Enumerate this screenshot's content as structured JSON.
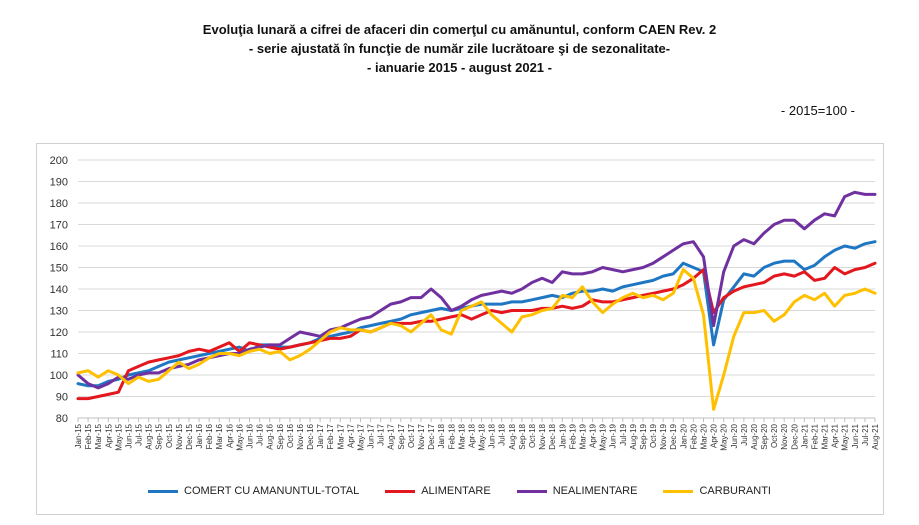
{
  "chart_data": {
    "type": "line",
    "title": "Evoluţia lunară a cifrei de afaceri din comerţul cu amănuntul,  conform CAEN Rev. 2",
    "subtitle": "- serie ajustată în funcţie de număr zile lucrătoare şi de sezonalitate-",
    "subtitle2": "- ianuarie 2015 -  august 2021  -",
    "unit_note": "- 2015=100 -",
    "ylim": [
      80,
      200
    ],
    "yticks": [
      "80",
      "90",
      "100",
      "110",
      "120",
      "130",
      "140",
      "150",
      "160",
      "170",
      "180",
      "190",
      "200"
    ],
    "grid": true,
    "legend_position": "bottom",
    "x": [
      "Jan-15",
      "Feb-15",
      "Mar-15",
      "Apr-15",
      "May-15",
      "Jun-15",
      "Jul-15",
      "Aug-15",
      "Sep-15",
      "Oct-15",
      "Nov-15",
      "Dec-15",
      "Jan-16",
      "Feb-16",
      "Mar-16",
      "Apr-16",
      "May-16",
      "Jun-16",
      "Jul-16",
      "Aug-16",
      "Sep-16",
      "Oct-16",
      "Nov-16",
      "Dec-16",
      "Jan-17",
      "Feb-17",
      "Mar-17",
      "Apr-17",
      "May-17",
      "Jun-17",
      "Jul-17",
      "Aug-17",
      "Sep-17",
      "Oct-17",
      "Nov-17",
      "Dec-17",
      "Jan-18",
      "Feb-18",
      "Mar-18",
      "Apr-18",
      "May-18",
      "Jun-18",
      "Jul-18",
      "Aug-18",
      "Sep-18",
      "Oct-18",
      "Nov-18",
      "Dec-18",
      "Jan-19",
      "Feb-19",
      "Mar-19",
      "Apr-19",
      "May-19",
      "Jun-19",
      "Jul-19",
      "Aug-19",
      "Sep-19",
      "Oct-19",
      "Nov-19",
      "Dec-19",
      "Jan-20",
      "Feb-20",
      "Mar-20",
      "Apr-20",
      "May-20",
      "Jun-20",
      "Jul-20",
      "Aug-20",
      "Sep-20",
      "Oct-20",
      "Nov-20",
      "Dec-20",
      "Jan-21",
      "Feb-21",
      "Mar-21",
      "Apr-21",
      "May-21",
      "Jun-21",
      "Jul-21",
      "Aug-21"
    ],
    "series": [
      {
        "name": "COMERT CU AMANUNTUL-TOTAL",
        "color": "#1f77c4",
        "values": [
          96,
          95,
          95,
          97,
          98,
          100,
          101,
          102,
          104,
          106,
          107,
          108,
          109,
          110,
          111,
          112,
          113,
          111,
          114,
          114,
          113,
          113,
          114,
          115,
          117,
          118,
          119,
          120,
          122,
          123,
          124,
          125,
          126,
          128,
          129,
          130,
          131,
          130,
          131,
          132,
          133,
          133,
          133,
          134,
          134,
          135,
          136,
          137,
          136,
          138,
          139,
          139,
          140,
          139,
          141,
          142,
          143,
          144,
          146,
          147,
          152,
          150,
          148,
          114,
          135,
          141,
          147,
          146,
          150,
          152,
          153,
          153,
          149,
          151,
          155,
          158,
          160,
          159,
          161,
          162
        ]
      },
      {
        "name": "ALIMENTARE",
        "color": "#e3171d",
        "values": [
          89,
          89,
          90,
          91,
          92,
          102,
          104,
          106,
          107,
          108,
          109,
          111,
          112,
          111,
          113,
          115,
          111,
          115,
          114,
          113,
          112,
          113,
          114,
          115,
          116,
          117,
          117,
          118,
          121,
          120,
          122,
          124,
          124,
          124,
          125,
          125,
          126,
          127,
          128,
          126,
          128,
          130,
          129,
          130,
          130,
          130,
          131,
          131,
          132,
          131,
          132,
          135,
          134,
          134,
          135,
          136,
          137,
          138,
          139,
          140,
          142,
          145,
          149,
          129,
          136,
          139,
          141,
          142,
          143,
          146,
          147,
          146,
          148,
          144,
          145,
          150,
          147,
          149,
          150,
          152
        ]
      },
      {
        "name": "NEALIMENTARE",
        "color": "#7030a0",
        "values": [
          100,
          96,
          94,
          96,
          99,
          98,
          100,
          101,
          101,
          103,
          104,
          105,
          107,
          108,
          109,
          110,
          110,
          112,
          113,
          114,
          114,
          117,
          120,
          119,
          118,
          121,
          122,
          124,
          126,
          127,
          130,
          133,
          134,
          136,
          136,
          140,
          136,
          130,
          132,
          135,
          137,
          138,
          139,
          138,
          140,
          143,
          145,
          143,
          148,
          147,
          147,
          148,
          150,
          149,
          148,
          149,
          150,
          152,
          155,
          158,
          161,
          162,
          155,
          123,
          148,
          160,
          163,
          161,
          166,
          170,
          172,
          172,
          168,
          172,
          175,
          174,
          183,
          185,
          184,
          184
        ]
      },
      {
        "name": "CARBURANTI",
        "color": "#ffc000",
        "values": [
          101,
          102,
          99,
          102,
          100,
          96,
          99,
          97,
          98,
          102,
          106,
          103,
          105,
          108,
          110,
          110,
          109,
          111,
          112,
          110,
          111,
          107,
          109,
          112,
          116,
          120,
          122,
          121,
          121,
          120,
          122,
          124,
          123,
          120,
          124,
          128,
          121,
          119,
          130,
          132,
          134,
          128,
          124,
          120,
          127,
          128,
          130,
          131,
          137,
          136,
          141,
          134,
          129,
          133,
          136,
          138,
          136,
          137,
          135,
          138,
          149,
          145,
          128,
          84,
          100,
          118,
          129,
          129,
          130,
          125,
          128,
          134,
          137,
          135,
          138,
          132,
          137,
          138,
          140,
          138
        ]
      }
    ]
  }
}
